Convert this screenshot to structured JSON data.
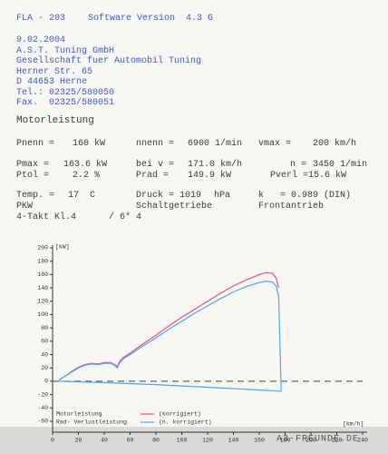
{
  "header": {
    "program": "FLA - 203",
    "version": "Software Version  4.3 G"
  },
  "address": [
    "9.02.2004",
    "A.S.T. Tuning GmbH",
    "Gesellschaft fuer Automobil Tuning",
    "Herner Str. 65",
    "D 44653 Herne",
    "Tel.: 02325/580050",
    "Fax.  02325/580051"
  ],
  "section_title": "Motorleistung",
  "rows": [
    [
      "Pnenn =",
      "160 kW",
      "nnenn =",
      "6900 1/min",
      "vmax =",
      "200 km/h"
    ],
    [
      "Pmax =",
      "163.6 kW",
      "bei v =",
      "171.0 km/h",
      "n =",
      "3450 1/min"
    ],
    [
      "Ptol =",
      "2.2 %",
      "Prad =",
      "149.9 kW",
      "Pverl =",
      "15.6 kW"
    ],
    [
      "Temp. =",
      "17  C",
      "Druck = 1019",
      "hPa",
      "k   = 0.989 (DIN)"
    ],
    [
      "PKW",
      "Schaltgetriebe",
      "Frontantrieb"
    ],
    [
      "4-Takt Kl.4",
      "/ 6* 4"
    ]
  ],
  "chart_data": {
    "type": "line",
    "y_label": "[kW]",
    "x_label": "[km/h]",
    "xlim": [
      0,
      240
    ],
    "ylim": [
      -60,
      200
    ],
    "xticks": [
      0,
      20,
      40,
      60,
      80,
      100,
      120,
      140,
      160,
      180,
      200,
      220,
      240
    ],
    "yticks": [
      -60,
      -40,
      -20,
      0,
      20,
      40,
      60,
      80,
      100,
      120,
      140,
      160,
      180,
      200
    ],
    "series": [
      {
        "name": "Motorleistung",
        "legend_note": "(korrigiert)",
        "color": "#e0508a",
        "x": [
          5,
          10,
          15,
          20,
          25,
          30,
          35,
          40,
          45,
          48,
          50,
          52,
          55,
          60,
          70,
          80,
          90,
          100,
          110,
          120,
          130,
          140,
          150,
          160,
          165,
          170,
          173,
          175
        ],
        "values": [
          2,
          8,
          15,
          21,
          25,
          27,
          26,
          28,
          28,
          25,
          22,
          30,
          36,
          42,
          56,
          69,
          83,
          96,
          108,
          120,
          132,
          143,
          152,
          160,
          163,
          162,
          155,
          140
        ]
      },
      {
        "color": "#4fa8e0",
        "x": [
          5,
          10,
          15,
          20,
          25,
          30,
          35,
          40,
          45,
          48,
          50,
          52,
          55,
          60,
          70,
          80,
          90,
          100,
          110,
          120,
          130,
          140,
          150,
          160,
          165,
          170,
          173,
          175,
          177
        ],
        "values": [
          2,
          8,
          14,
          20,
          24,
          26,
          25,
          27,
          27,
          24,
          20,
          28,
          34,
          40,
          53,
          65,
          78,
          90,
          102,
          113,
          124,
          134,
          142,
          148,
          150,
          149,
          143,
          128,
          -15
        ]
      },
      {
        "name": "Rad- Verlustleistung",
        "legend_note": "(n. korrigiert)",
        "color": "#4fa8e0",
        "x": [
          5,
          40,
          80,
          120,
          160,
          177
        ],
        "values": [
          0,
          -2,
          -5,
          -9,
          -13,
          -15
        ]
      }
    ],
    "watermark": "A3-FREUNDE.DE"
  }
}
